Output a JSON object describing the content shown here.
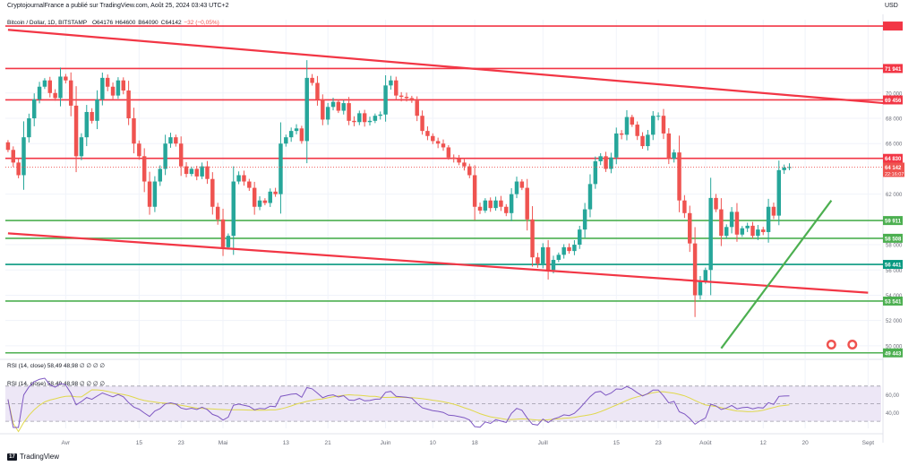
{
  "header": {
    "publisher": "CryptojournalFrance a publié sur TradingView.com, Août 25, 2024 03:43 UTC+2",
    "symbol": "Bitcoin / Dollar, 1D, BITSTAMP",
    "open": "O64176",
    "high": "H64600",
    "low": "B64090",
    "close": "C64142",
    "change": "−32 (−0,05%)",
    "currency": "USD"
  },
  "footer": {
    "logo_text": "TradingView",
    "logo_mark": "17"
  },
  "colors": {
    "up": "#26a69a",
    "down": "#ef5350",
    "resistance": "#f23645",
    "support": "#4caf50",
    "support_teal": "#089981",
    "trendline_up": "#4caf50",
    "rsi_line": "#7e57c2",
    "rsi_ma": "#e0d84b",
    "rsi_band": "#ede7f6",
    "grid": "#f0f3fa",
    "axis_text": "#131722"
  },
  "chart_data": {
    "type": "candlestick",
    "title": "Bitcoin / Dollar, 1D, BITSTAMP",
    "ylim": [
      49000,
      75800
    ],
    "y_ticks": [
      50000,
      52000,
      54000,
      56000,
      58000,
      62000,
      66000,
      68000,
      70000
    ],
    "y_tick_labels": [
      "50 000",
      "52 000",
      "54 000",
      "56 000",
      "58 000",
      "62 000",
      "66 000",
      "68 000",
      "70 000"
    ],
    "x_tick_labels": [
      {
        "label": "Avr",
        "bar": 11
      },
      {
        "label": "15",
        "bar": 25
      },
      {
        "label": "23",
        "bar": 33
      },
      {
        "label": "Mai",
        "bar": 41
      },
      {
        "label": "13",
        "bar": 53
      },
      {
        "label": "21",
        "bar": 61
      },
      {
        "label": "Juin",
        "bar": 72
      },
      {
        "label": "10",
        "bar": 81
      },
      {
        "label": "18",
        "bar": 89
      },
      {
        "label": "Juill",
        "bar": 102
      },
      {
        "label": "15",
        "bar": 116
      },
      {
        "label": "23",
        "bar": 124
      },
      {
        "label": "Août",
        "bar": 133
      },
      {
        "label": "12",
        "bar": 144
      },
      {
        "label": "20",
        "bar": 152
      },
      {
        "label": "Sept",
        "bar": 164
      }
    ],
    "total_slots": 167,
    "price_levels": [
      {
        "value": 75300,
        "label": "",
        "kind": "resistance"
      },
      {
        "value": 71941,
        "label": "71 941",
        "kind": "resistance"
      },
      {
        "value": 69456,
        "label": "69 456",
        "kind": "resistance"
      },
      {
        "value": 64830,
        "label": "64 830",
        "kind": "resistance"
      },
      {
        "value": 59911,
        "label": "59 911",
        "kind": "support"
      },
      {
        "value": 58508,
        "label": "58 508",
        "kind": "support"
      },
      {
        "value": 56441,
        "label": "56 441",
        "kind": "support_teal"
      },
      {
        "value": 53541,
        "label": "53 541",
        "kind": "support"
      },
      {
        "value": 49443,
        "label": "49 443",
        "kind": "support"
      }
    ],
    "current_price": {
      "value": 64142,
      "label": "64 142",
      "countdown": "22:16:07"
    },
    "trendlines": [
      {
        "name": "resistance-diagonal",
        "from": {
          "bar": 0,
          "value": 75000
        },
        "to": {
          "bar": 167,
          "value": 69200
        },
        "kind": "resistance"
      },
      {
        "name": "support-diagonal",
        "from": {
          "bar": 0,
          "value": 58900
        },
        "to": {
          "bar": 164,
          "value": 54200
        },
        "kind": "resistance"
      },
      {
        "name": "rising-trendline",
        "from": {
          "bar": 136,
          "value": 49800
        },
        "to": {
          "bar": 157,
          "value": 61500
        },
        "kind": "trendline_up"
      }
    ],
    "anchors": [
      {
        "bar": 0,
        "value": 65500
      },
      {
        "bar": 1,
        "value": 64500
      },
      {
        "bar": 2,
        "value": 63500
      },
      {
        "bar": 3,
        "value": 66500
      },
      {
        "bar": 4,
        "value": 68000
      },
      {
        "bar": 5,
        "value": 69500
      },
      {
        "bar": 6,
        "value": 70500
      },
      {
        "bar": 7,
        "value": 71000
      },
      {
        "bar": 8,
        "value": 70000
      },
      {
        "bar": 9,
        "value": 69600
      },
      {
        "bar": 10,
        "value": 71300
      },
      {
        "bar": 11,
        "value": 71000
      },
      {
        "bar": 12,
        "value": 69000
      },
      {
        "bar": 13,
        "value": 65000
      },
      {
        "bar": 14,
        "value": 66500
      },
      {
        "bar": 15,
        "value": 68500
      },
      {
        "bar": 16,
        "value": 67800
      },
      {
        "bar": 17,
        "value": 69500
      },
      {
        "bar": 18,
        "value": 71200
      },
      {
        "bar": 19,
        "value": 70500
      },
      {
        "bar": 20,
        "value": 69800
      },
      {
        "bar": 21,
        "value": 71000
      },
      {
        "bar": 22,
        "value": 70200
      },
      {
        "bar": 23,
        "value": 68000
      },
      {
        "bar": 24,
        "value": 66000
      },
      {
        "bar": 25,
        "value": 65000
      },
      {
        "bar": 26,
        "value": 63000
      },
      {
        "bar": 27,
        "value": 61000
      },
      {
        "bar": 28,
        "value": 63000
      },
      {
        "bar": 29,
        "value": 64000
      },
      {
        "bar": 30,
        "value": 66000
      },
      {
        "bar": 31,
        "value": 66500
      },
      {
        "bar": 32,
        "value": 66000
      },
      {
        "bar": 33,
        "value": 64200
      },
      {
        "bar": 34,
        "value": 63600
      },
      {
        "bar": 35,
        "value": 64000
      },
      {
        "bar": 36,
        "value": 63400
      },
      {
        "bar": 37,
        "value": 64200
      },
      {
        "bar": 38,
        "value": 63200
      },
      {
        "bar": 39,
        "value": 61000
      },
      {
        "bar": 40,
        "value": 60000
      },
      {
        "bar": 41,
        "value": 57800
      },
      {
        "bar": 42,
        "value": 58700
      },
      {
        "bar": 43,
        "value": 63000
      },
      {
        "bar": 44,
        "value": 63500
      },
      {
        "bar": 45,
        "value": 63000
      },
      {
        "bar": 46,
        "value": 62500
      },
      {
        "bar": 47,
        "value": 61000
      },
      {
        "bar": 48,
        "value": 61500
      },
      {
        "bar": 49,
        "value": 61300
      },
      {
        "bar": 50,
        "value": 62200
      },
      {
        "bar": 51,
        "value": 62000
      },
      {
        "bar": 52,
        "value": 66000
      },
      {
        "bar": 53,
        "value": 66500
      },
      {
        "bar": 54,
        "value": 67000
      },
      {
        "bar": 55,
        "value": 67200
      },
      {
        "bar": 56,
        "value": 66200
      },
      {
        "bar": 57,
        "value": 71200
      },
      {
        "bar": 58,
        "value": 70800
      },
      {
        "bar": 59,
        "value": 69500
      },
      {
        "bar": 60,
        "value": 67900
      },
      {
        "bar": 61,
        "value": 68900
      },
      {
        "bar": 62,
        "value": 69300
      },
      {
        "bar": 63,
        "value": 68600
      },
      {
        "bar": 64,
        "value": 69200
      },
      {
        "bar": 65,
        "value": 67800
      },
      {
        "bar": 66,
        "value": 67700
      },
      {
        "bar": 67,
        "value": 68400
      },
      {
        "bar": 68,
        "value": 67700
      },
      {
        "bar": 69,
        "value": 67800
      },
      {
        "bar": 70,
        "value": 68200
      },
      {
        "bar": 71,
        "value": 68300
      },
      {
        "bar": 72,
        "value": 70600
      },
      {
        "bar": 73,
        "value": 71000
      },
      {
        "bar": 74,
        "value": 69800
      },
      {
        "bar": 75,
        "value": 69700
      },
      {
        "bar": 76,
        "value": 69600
      },
      {
        "bar": 77,
        "value": 69400
      },
      {
        "bar": 78,
        "value": 68200
      },
      {
        "bar": 79,
        "value": 67000
      },
      {
        "bar": 80,
        "value": 66600
      },
      {
        "bar": 81,
        "value": 66200
      },
      {
        "bar": 82,
        "value": 66000
      },
      {
        "bar": 83,
        "value": 65700
      },
      {
        "bar": 84,
        "value": 64900
      },
      {
        "bar": 85,
        "value": 64800
      },
      {
        "bar": 86,
        "value": 64500
      },
      {
        "bar": 87,
        "value": 64200
      },
      {
        "bar": 88,
        "value": 63500
      },
      {
        "bar": 89,
        "value": 61000
      },
      {
        "bar": 90,
        "value": 60700
      },
      {
        "bar": 91,
        "value": 61500
      },
      {
        "bar": 92,
        "value": 60900
      },
      {
        "bar": 93,
        "value": 61500
      },
      {
        "bar": 94,
        "value": 61000
      },
      {
        "bar": 95,
        "value": 60500
      },
      {
        "bar": 96,
        "value": 62000
      },
      {
        "bar": 97,
        "value": 63000
      },
      {
        "bar": 98,
        "value": 62500
      },
      {
        "bar": 99,
        "value": 60000
      },
      {
        "bar": 100,
        "value": 57000
      },
      {
        "bar": 101,
        "value": 56500
      },
      {
        "bar": 102,
        "value": 57800
      },
      {
        "bar": 103,
        "value": 56000
      },
      {
        "bar": 104,
        "value": 56800
      },
      {
        "bar": 105,
        "value": 57200
      },
      {
        "bar": 106,
        "value": 57800
      },
      {
        "bar": 107,
        "value": 57500
      },
      {
        "bar": 108,
        "value": 58000
      },
      {
        "bar": 109,
        "value": 59200
      },
      {
        "bar": 110,
        "value": 60800
      },
      {
        "bar": 111,
        "value": 62800
      },
      {
        "bar": 112,
        "value": 64600
      },
      {
        "bar": 113,
        "value": 65000
      },
      {
        "bar": 114,
        "value": 64000
      },
      {
        "bar": 115,
        "value": 64900
      },
      {
        "bar": 116,
        "value": 66800
      },
      {
        "bar": 117,
        "value": 66700
      },
      {
        "bar": 118,
        "value": 68100
      },
      {
        "bar": 119,
        "value": 67500
      },
      {
        "bar": 120,
        "value": 66600
      },
      {
        "bar": 121,
        "value": 65800
      },
      {
        "bar": 122,
        "value": 66700
      },
      {
        "bar": 123,
        "value": 68200
      },
      {
        "bar": 124,
        "value": 68200
      },
      {
        "bar": 125,
        "value": 66800
      },
      {
        "bar": 126,
        "value": 64800
      },
      {
        "bar": 127,
        "value": 65300
      },
      {
        "bar": 128,
        "value": 61500
      },
      {
        "bar": 129,
        "value": 60500
      },
      {
        "bar": 130,
        "value": 58100
      },
      {
        "bar": 131,
        "value": 54000
      },
      {
        "bar": 132,
        "value": 55100
      },
      {
        "bar": 133,
        "value": 56000
      },
      {
        "bar": 134,
        "value": 61700
      },
      {
        "bar": 135,
        "value": 60800
      },
      {
        "bar": 136,
        "value": 58700
      },
      {
        "bar": 137,
        "value": 59400
      },
      {
        "bar": 138,
        "value": 60600
      },
      {
        "bar": 139,
        "value": 58800
      },
      {
        "bar": 140,
        "value": 59300
      },
      {
        "bar": 141,
        "value": 59500
      },
      {
        "bar": 142,
        "value": 58700
      },
      {
        "bar": 143,
        "value": 59200
      },
      {
        "bar": 144,
        "value": 59000
      },
      {
        "bar": 145,
        "value": 61000
      },
      {
        "bar": 146,
        "value": 60300
      },
      {
        "bar": 147,
        "value": 63900
      },
      {
        "bar": 148,
        "value": 64100
      },
      {
        "bar": 149,
        "value": 64142
      }
    ],
    "volume_badges": [
      {
        "bar": 157,
        "value": 50100
      },
      {
        "bar": 161,
        "value": 50100
      }
    ],
    "rsi": {
      "label": "RSI (14, close)",
      "value_1": "58,49",
      "value_2": "48,98",
      "placeholders": "∅ ∅ ∅ ∅",
      "ylim": [
        22,
        80
      ],
      "band": [
        30,
        70
      ],
      "mid": 50,
      "y_tick_labels": [
        {
          "value": 60,
          "label": "60,00"
        },
        {
          "value": 40,
          "label": "40,00"
        }
      ]
    }
  }
}
